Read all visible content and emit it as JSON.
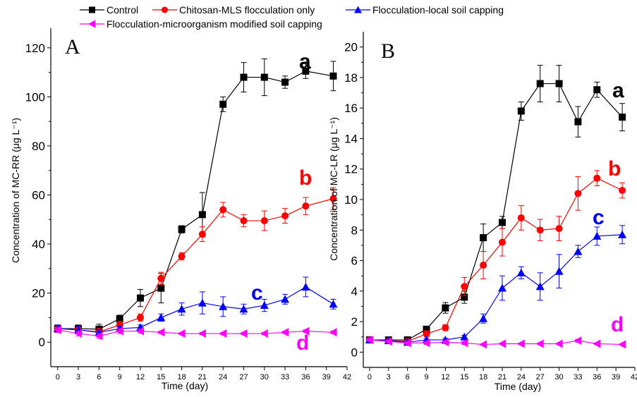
{
  "legend": [
    {
      "name": "Control",
      "color": "#000000",
      "marker": "square"
    },
    {
      "name": "Chitosan-MLS flocculation only",
      "color": "#ff0000",
      "marker": "circle"
    },
    {
      "name": "Flocculation-local soil capping",
      "color": "#0000ff",
      "marker": "triangle-up"
    },
    {
      "name": "Flocculation-microorganism  modified soil  capping",
      "color": "#ff00ff",
      "marker": "triangle-left"
    }
  ],
  "chart_data": [
    {
      "type": "line",
      "panel": "A",
      "xlabel": "Time (day)",
      "ylabel": "Concentration of MC-RR (μg L⁻¹)",
      "xlim": [
        -1,
        42
      ],
      "ylim": [
        -10,
        128
      ],
      "xticks": [
        0,
        3,
        6,
        9,
        12,
        15,
        18,
        21,
        24,
        27,
        30,
        33,
        36,
        39,
        42
      ],
      "yticks": [
        0,
        20,
        40,
        60,
        80,
        100,
        120
      ],
      "x": [
        0,
        3,
        6,
        9,
        12,
        15,
        18,
        21,
        24,
        27,
        30,
        33,
        36,
        40
      ],
      "series": [
        {
          "name": "Control",
          "label": "a",
          "values": [
            5.5,
            5.5,
            5.3,
            9.5,
            18,
            22,
            46,
            52,
            97,
            108,
            108,
            106,
            110.5,
            108.5
          ],
          "errors": [
            1.5,
            1.5,
            2,
            1.5,
            3.5,
            6,
            1.5,
            9,
            3,
            6,
            7.5,
            2.5,
            3,
            6
          ]
        },
        {
          "name": "Chitosan-MLS flocculation only",
          "label": "b",
          "values": [
            5.5,
            5,
            4.2,
            7,
            10,
            26,
            35,
            44,
            54,
            49.5,
            49.5,
            51.5,
            55.5,
            58.5
          ],
          "errors": [
            1.5,
            1.5,
            1.5,
            1.5,
            1.5,
            2.5,
            1.5,
            3,
            3,
            2.5,
            4,
            3,
            3.5,
            4.5
          ]
        },
        {
          "name": "Flocculation-local soil capping",
          "label": "c",
          "values": [
            5.5,
            5,
            4,
            5.5,
            6,
            10,
            13.5,
            16,
            14.5,
            13.5,
            15,
            17.5,
            22.5,
            15.5
          ],
          "errors": [
            1.5,
            1.5,
            1,
            1,
            1,
            1.5,
            2.5,
            4.5,
            4,
            2,
            2.5,
            2,
            4,
            2
          ]
        },
        {
          "name": "Flocculation-microorganism  modified soil  capping",
          "label": "d",
          "values": [
            5,
            3.5,
            2.5,
            4.5,
            4.5,
            4,
            3.5,
            3.5,
            3.5,
            3.5,
            3.5,
            4,
            4.5,
            4
          ],
          "errors": [
            1,
            1,
            1,
            1,
            0.8,
            0.5,
            0.5,
            0.5,
            0.5,
            0.5,
            0.5,
            0.5,
            0.5,
            0.5
          ]
        }
      ]
    },
    {
      "type": "line",
      "panel": "B",
      "xlabel": "Time (day)",
      "ylabel": "Concentration of MC-LR (μg L⁻¹)",
      "xlim": [
        -1,
        42
      ],
      "ylim": [
        -1,
        21
      ],
      "xticks": [
        0,
        3,
        6,
        9,
        12,
        15,
        18,
        21,
        24,
        27,
        30,
        33,
        36,
        39,
        42
      ],
      "yticks": [
        0,
        2,
        4,
        6,
        8,
        10,
        12,
        14,
        16,
        18,
        20
      ],
      "x": [
        0,
        3,
        6,
        9,
        12,
        15,
        18,
        21,
        24,
        27,
        30,
        33,
        36,
        40
      ],
      "series": [
        {
          "name": "Control",
          "label": "a",
          "values": [
            0.8,
            0.8,
            0.8,
            1.5,
            2.9,
            3.6,
            7.5,
            8.5,
            15.8,
            17.6,
            17.6,
            15.1,
            17.2,
            15.4
          ],
          "errors": [
            0.15,
            0.1,
            0.15,
            0.2,
            0.35,
            0.4,
            0.9,
            0.4,
            0.6,
            1.2,
            1.2,
            1,
            0.5,
            0.9
          ]
        },
        {
          "name": "Chitosan-MLS flocculation only",
          "label": "b",
          "values": [
            0.8,
            0.75,
            0.7,
            1.2,
            1.6,
            4.3,
            5.7,
            7.2,
            8.8,
            8.0,
            8.1,
            10.4,
            11.4,
            10.6
          ],
          "errors": [
            0.15,
            0.1,
            0.1,
            0.2,
            0.2,
            0.6,
            0.9,
            0.9,
            0.8,
            0.7,
            0.8,
            1.1,
            0.5,
            0.5
          ]
        },
        {
          "name": "Flocculation-local soil capping",
          "label": "c",
          "values": [
            0.8,
            0.75,
            0.65,
            0.8,
            0.8,
            1.0,
            2.2,
            4.2,
            5.2,
            4.3,
            5.3,
            6.6,
            7.6,
            7.7
          ],
          "errors": [
            0.1,
            0.1,
            0.1,
            0.1,
            0.1,
            0.1,
            0.3,
            0.8,
            0.4,
            0.9,
            1.1,
            0.4,
            0.6,
            0.6
          ]
        },
        {
          "name": "Flocculation-microorganism  modified soil  capping",
          "label": "d",
          "values": [
            0.8,
            0.7,
            0.6,
            0.6,
            0.65,
            0.6,
            0.5,
            0.55,
            0.55,
            0.55,
            0.55,
            0.75,
            0.55,
            0.5
          ],
          "errors": [
            0.1,
            0.1,
            0.1,
            0.1,
            0.1,
            0.1,
            0.05,
            0.05,
            0.05,
            0.05,
            0.05,
            0.1,
            0.05,
            0.05
          ]
        }
      ]
    }
  ]
}
